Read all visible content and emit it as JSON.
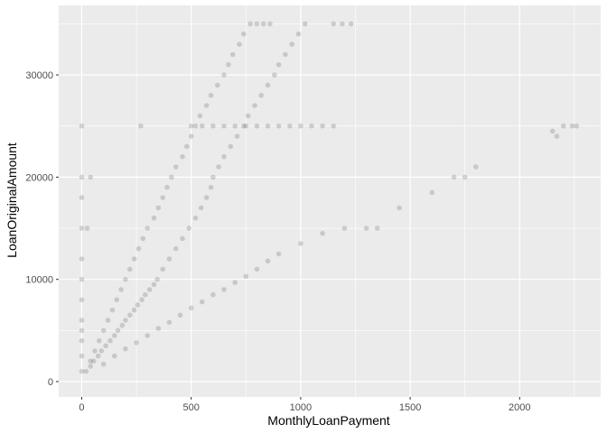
{
  "chart_data": {
    "type": "scatter",
    "title": "",
    "xlabel": "MonthlyLoanPayment",
    "ylabel": "LoanOriginalAmount",
    "xlim": [
      -105,
      2370
    ],
    "ylim": [
      -1500,
      36800
    ],
    "xticks": [
      0,
      500,
      1000,
      1500,
      2000
    ],
    "yticks": [
      0,
      10000,
      20000,
      30000
    ],
    "xtick_labels": [
      "0",
      "500",
      "1000",
      "1500",
      "2000"
    ],
    "ytick_labels": [
      "0",
      "10000",
      "20000",
      "30000"
    ],
    "grid": true,
    "point_alpha": 0.15,
    "colors": {
      "panel": "#ebebeb",
      "grid": "#ffffff",
      "point": "#000000",
      "tick": "#4d4d4d",
      "axis_title": "#000000"
    },
    "points": [
      [
        20,
        1000
      ],
      [
        40,
        1500
      ],
      [
        55,
        2000
      ],
      [
        75,
        2500
      ],
      [
        90,
        3000
      ],
      [
        110,
        3500
      ],
      [
        130,
        4000
      ],
      [
        150,
        4500
      ],
      [
        165,
        5000
      ],
      [
        185,
        5500
      ],
      [
        200,
        6000
      ],
      [
        220,
        6500
      ],
      [
        240,
        7000
      ],
      [
        255,
        7500
      ],
      [
        275,
        8000
      ],
      [
        290,
        8500
      ],
      [
        310,
        9000
      ],
      [
        330,
        9500
      ],
      [
        345,
        10000
      ],
      [
        370,
        11000
      ],
      [
        400,
        12000
      ],
      [
        430,
        13000
      ],
      [
        460,
        14000
      ],
      [
        490,
        15000
      ],
      [
        520,
        16000
      ],
      [
        545,
        17000
      ],
      [
        570,
        18000
      ],
      [
        590,
        19000
      ],
      [
        600,
        20000
      ],
      [
        625,
        21000
      ],
      [
        650,
        22000
      ],
      [
        680,
        23000
      ],
      [
        710,
        24000
      ],
      [
        740,
        25000
      ],
      [
        760,
        26000
      ],
      [
        790,
        27000
      ],
      [
        820,
        28000
      ],
      [
        850,
        29000
      ],
      [
        880,
        30000
      ],
      [
        900,
        31000
      ],
      [
        930,
        32000
      ],
      [
        960,
        33000
      ],
      [
        990,
        34000
      ],
      [
        1020,
        35000
      ],
      [
        40,
        2000
      ],
      [
        60,
        3000
      ],
      [
        80,
        4000
      ],
      [
        100,
        5000
      ],
      [
        120,
        6000
      ],
      [
        140,
        7000
      ],
      [
        160,
        8000
      ],
      [
        180,
        9000
      ],
      [
        200,
        10000
      ],
      [
        220,
        11000
      ],
      [
        240,
        12000
      ],
      [
        260,
        13000
      ],
      [
        280,
        14000
      ],
      [
        300,
        15000
      ],
      [
        330,
        16000
      ],
      [
        350,
        17000
      ],
      [
        370,
        18000
      ],
      [
        390,
        19000
      ],
      [
        410,
        20000
      ],
      [
        430,
        21000
      ],
      [
        460,
        22000
      ],
      [
        480,
        23000
      ],
      [
        500,
        24000
      ],
      [
        520,
        25000
      ],
      [
        540,
        26000
      ],
      [
        570,
        27000
      ],
      [
        590,
        28000
      ],
      [
        620,
        29000
      ],
      [
        650,
        30000
      ],
      [
        670,
        31000
      ],
      [
        690,
        32000
      ],
      [
        720,
        33000
      ],
      [
        740,
        34000
      ],
      [
        770,
        35000
      ],
      [
        100,
        1700
      ],
      [
        150,
        2500
      ],
      [
        200,
        3200
      ],
      [
        250,
        3800
      ],
      [
        300,
        4500
      ],
      [
        350,
        5200
      ],
      [
        400,
        5800
      ],
      [
        450,
        6500
      ],
      [
        500,
        7200
      ],
      [
        550,
        7800
      ],
      [
        600,
        8500
      ],
      [
        650,
        9000
      ],
      [
        700,
        9700
      ],
      [
        750,
        10300
      ],
      [
        800,
        11000
      ],
      [
        850,
        11800
      ],
      [
        900,
        12500
      ],
      [
        1000,
        13500
      ],
      [
        1100,
        14500
      ],
      [
        1200,
        15000
      ],
      [
        1300,
        15000
      ],
      [
        1350,
        15000
      ],
      [
        1450,
        17000
      ],
      [
        1600,
        18500
      ],
      [
        1700,
        20000
      ],
      [
        1750,
        20000
      ],
      [
        1800,
        21000
      ],
      [
        2150,
        24500
      ],
      [
        2170,
        24000
      ],
      [
        2200,
        25000
      ],
      [
        2240,
        25000
      ],
      [
        2260,
        25000
      ],
      [
        500,
        25000
      ],
      [
        550,
        25000
      ],
      [
        600,
        25000
      ],
      [
        650,
        25000
      ],
      [
        700,
        25000
      ],
      [
        750,
        25000
      ],
      [
        800,
        25000
      ],
      [
        850,
        25000
      ],
      [
        900,
        25000
      ],
      [
        950,
        25000
      ],
      [
        1000,
        25000
      ],
      [
        1050,
        25000
      ],
      [
        1100,
        25000
      ],
      [
        1150,
        25000
      ],
      [
        800,
        35000
      ],
      [
        830,
        35000
      ],
      [
        860,
        35000
      ],
      [
        1150,
        35000
      ],
      [
        1190,
        35000
      ],
      [
        1230,
        35000
      ],
      [
        0,
        1000
      ],
      [
        0,
        2500
      ],
      [
        0,
        4000
      ],
      [
        0,
        5000
      ],
      [
        0,
        6000
      ],
      [
        0,
        8000
      ],
      [
        0,
        10000
      ],
      [
        0,
        12000
      ],
      [
        0,
        15000
      ],
      [
        0,
        18000
      ],
      [
        0,
        20000
      ],
      [
        0,
        25000
      ],
      [
        270,
        25000
      ],
      [
        25,
        15000
      ],
      [
        40,
        20000
      ]
    ]
  }
}
